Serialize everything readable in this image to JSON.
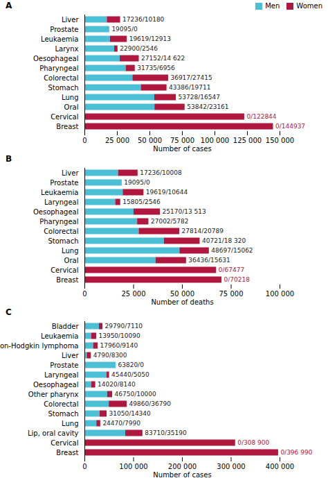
{
  "chart_data": [
    {
      "type": "bar",
      "orientation": "horizontal",
      "stacked": true,
      "data_labels": true,
      "grid": false,
      "legend": "right",
      "title": "A",
      "xlabel": "Number of cases",
      "categories": [
        "Liver",
        "Prostate",
        "Leukaemia",
        "Larynx",
        "Oesophageal",
        "Pharyngeal",
        "Colorectal",
        "Stomach",
        "Lung",
        "Oral",
        "Cervical",
        "Breast"
      ],
      "series": [
        {
          "name": "Men",
          "color": "#4BBFD6",
          "values": [
            17236,
            19095,
            19619,
            22900,
            27152,
            31735,
            36917,
            43386,
            53728,
            53842,
            0,
            0
          ]
        },
        {
          "name": "Women",
          "color": "#B0173F",
          "values": [
            10180,
            0,
            12913,
            2546,
            14622,
            6956,
            27415,
            19711,
            16547,
            23161,
            122844,
            144937
          ]
        }
      ],
      "value_labels": [
        "17236/10180",
        "19095/0",
        "19619/12913",
        "22900/2546",
        "27152/14 622",
        "31735/6956",
        "36917/27415",
        "43386/19711",
        "53728/16547",
        "53842/23161",
        "0/122844",
        "0/144937"
      ],
      "xlim": [
        0,
        150000
      ],
      "xticks": [
        0,
        {
          "value": 25000,
          "label": "25 000"
        },
        {
          "value": 50000,
          "label": "50 000"
        },
        {
          "value": 75000,
          "label": "75 000"
        },
        {
          "value": 100000,
          "label": "100 000"
        },
        {
          "value": 125000,
          "label": "125 000"
        },
        {
          "value": 150000,
          "label": "150 000"
        }
      ]
    },
    {
      "type": "bar",
      "orientation": "horizontal",
      "stacked": true,
      "data_labels": true,
      "grid": false,
      "title": "B",
      "xlabel": "Number of deaths",
      "categories": [
        "Liver",
        "Prostate",
        "Leukaemia",
        "Laryngeal",
        "Oesophageal",
        "Pharyngeal",
        "Colorectal",
        "Stomach",
        "Lung",
        "Oral",
        "Cervical",
        "Breast"
      ],
      "series": [
        {
          "name": "Men",
          "color": "#4BBFD6",
          "values": [
            17236,
            19095,
            19619,
            15805,
            25170,
            27002,
            27814,
            40721,
            48697,
            36436,
            0,
            0
          ]
        },
        {
          "name": "Women",
          "color": "#B0173F",
          "values": [
            10008,
            0,
            10644,
            2546,
            13513,
            5782,
            20789,
            18320,
            15062,
            15631,
            67477,
            70218
          ]
        }
      ],
      "value_labels": [
        "17236/10008",
        "19095/0",
        "19619/10644",
        "15805/2546",
        "25170/13 513",
        "27002/5782",
        "27814/20789",
        "40721/18 320",
        "48697/15062",
        "36436/15631",
        "0/67477",
        "0/70218"
      ],
      "xlim": [
        0,
        100000
      ],
      "xticks": [
        0,
        {
          "value": 25000,
          "label": "25 000"
        },
        {
          "value": 50000,
          "label": "50 000"
        },
        {
          "value": 75000,
          "label": "75 000"
        },
        {
          "value": 100000,
          "label": "100 000"
        }
      ]
    },
    {
      "type": "bar",
      "orientation": "horizontal",
      "stacked": true,
      "data_labels": true,
      "grid": false,
      "title": "C",
      "xlabel": "Number of cases",
      "categories": [
        "Bladder",
        "Leukaemia",
        "Non-Hodgkin lymphoma",
        "Liver",
        "Prostate",
        "Laryngeal",
        "Oesophageal",
        "Other pharynx",
        "Colorectal",
        "Stomach",
        "Lung",
        "Lip, oral cavity",
        "Cervical",
        "Breast"
      ],
      "series": [
        {
          "name": "Men",
          "color": "#4BBFD6",
          "values": [
            29790,
            13950,
            17960,
            4790,
            63820,
            45440,
            14020,
            46750,
            49860,
            31050,
            24470,
            83710,
            0,
            0
          ]
        },
        {
          "name": "Women",
          "color": "#B0173F",
          "values": [
            7110,
            10090,
            9140,
            8300,
            0,
            5050,
            8140,
            10000,
            36790,
            14340,
            7990,
            35190,
            308900,
            396990
          ]
        }
      ],
      "value_labels": [
        "29790/7110",
        "13950/10090",
        "17960/9140",
        "4790/8300",
        "63820/0",
        "45440/5050",
        "14020/8140",
        "46750/10000",
        "49860/36790",
        "31050/14340",
        "24470/7990",
        "83710/35190",
        "0/308 900",
        "0/396 990"
      ],
      "xlim": [
        0,
        400000
      ],
      "xticks": [
        0,
        {
          "value": 100000,
          "label": "100 000"
        },
        {
          "value": 200000,
          "label": "200 000"
        },
        {
          "value": 300000,
          "label": "300 000"
        },
        {
          "value": 400000,
          "label": "400 000"
        }
      ]
    }
  ]
}
